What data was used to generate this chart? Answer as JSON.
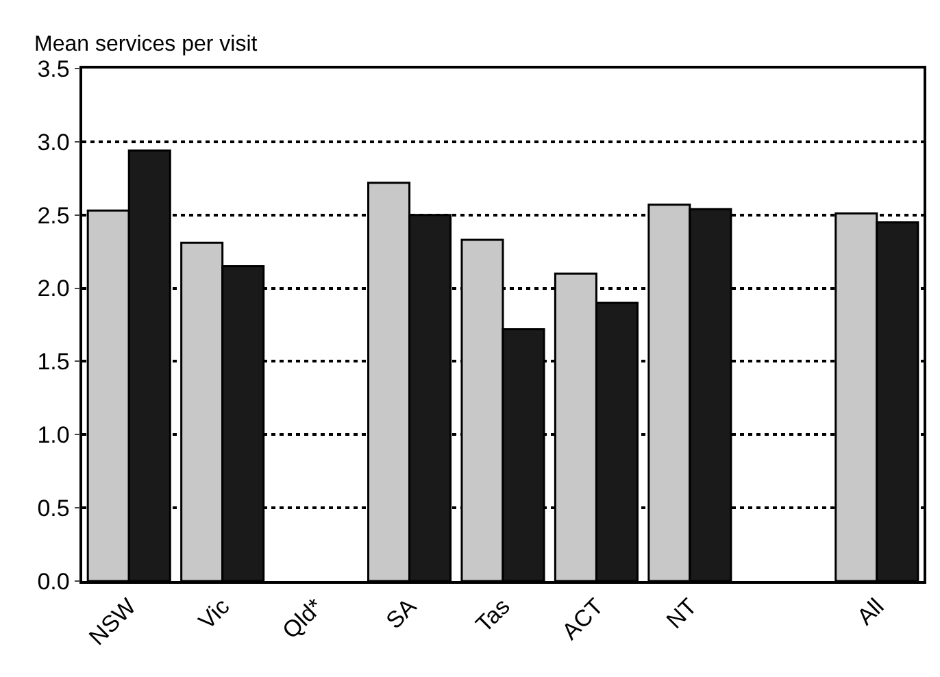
{
  "chart_data": {
    "type": "bar",
    "ylabel": "Mean services per visit",
    "categories": [
      "NSW",
      "Vic",
      "Qld*",
      "SA",
      "Tas",
      "ACT",
      "NT",
      null,
      "All"
    ],
    "series": [
      {
        "color": "#c8c8c8",
        "values": [
          2.53,
          2.31,
          null,
          2.72,
          2.33,
          2.1,
          2.57,
          null,
          2.51
        ]
      },
      {
        "color": "#1a1a1a",
        "values": [
          2.94,
          2.15,
          null,
          2.5,
          1.72,
          1.9,
          2.54,
          null,
          2.45
        ]
      }
    ],
    "ylim": [
      0,
      3.5
    ],
    "yticks": [
      {
        "value": 0,
        "label": "0.0"
      },
      0.5,
      {
        "value": 1,
        "label": "1.0"
      },
      1.5,
      {
        "value": 2,
        "label": "2.0"
      },
      2.5,
      {
        "value": 3,
        "label": "3.0"
      },
      3.5
    ],
    "grid": "y",
    "legend": false
  }
}
